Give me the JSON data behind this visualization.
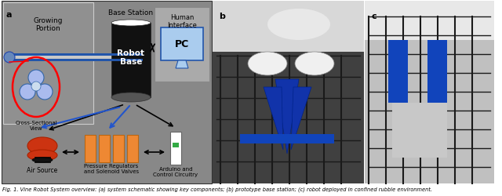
{
  "panel_a_label": "a",
  "panel_b_label": "b",
  "panel_c_label": "c",
  "diagram_bg": "#888888",
  "growing_portion_box_color": "#999999",
  "growing_portion_label": "Growing\nPortion",
  "base_station_label": "Base Station",
  "human_interface_label": "Human\nInterface",
  "robot_base_label": "Robot\nBase",
  "pc_label": "PC",
  "cross_section_label": "Cross-Sectional\nView",
  "air_source_label": "Air Source",
  "pressure_reg_label": "Pressure Regulators\nand Solenoid Valves",
  "arduino_label": "Arduino and\nControl Circuitry",
  "tube_gray": "#c8c8c8",
  "tube_blue_dark": "#2255aa",
  "tube_blue_mid": "#4488cc",
  "robot_cyl_dark": "#111111",
  "robot_cyl_mid": "#333333",
  "robot_cyl_gray": "#555555",
  "air_source_red": "#cc3311",
  "air_source_dark": "#1a1a1a",
  "pressure_reg_orange": "#ee8833",
  "arduino_white": "#ffffff",
  "arduino_green": "#33aa44",
  "pc_box_blue": "#aaccee",
  "pc_border_blue": "#2255aa",
  "hi_box_color": "#aaaaaa",
  "hi_border_color": "#555555",
  "cross_circle_fill": "#aabbee",
  "cross_circle_edge": "#3366aa",
  "cross_center_fill": "#ccddee",
  "caption": "Fig. 1. Vine Robot System overview: (a) system schematic showing key components; (b) prototype base station; (c) robot deployed in confined rubble environment."
}
